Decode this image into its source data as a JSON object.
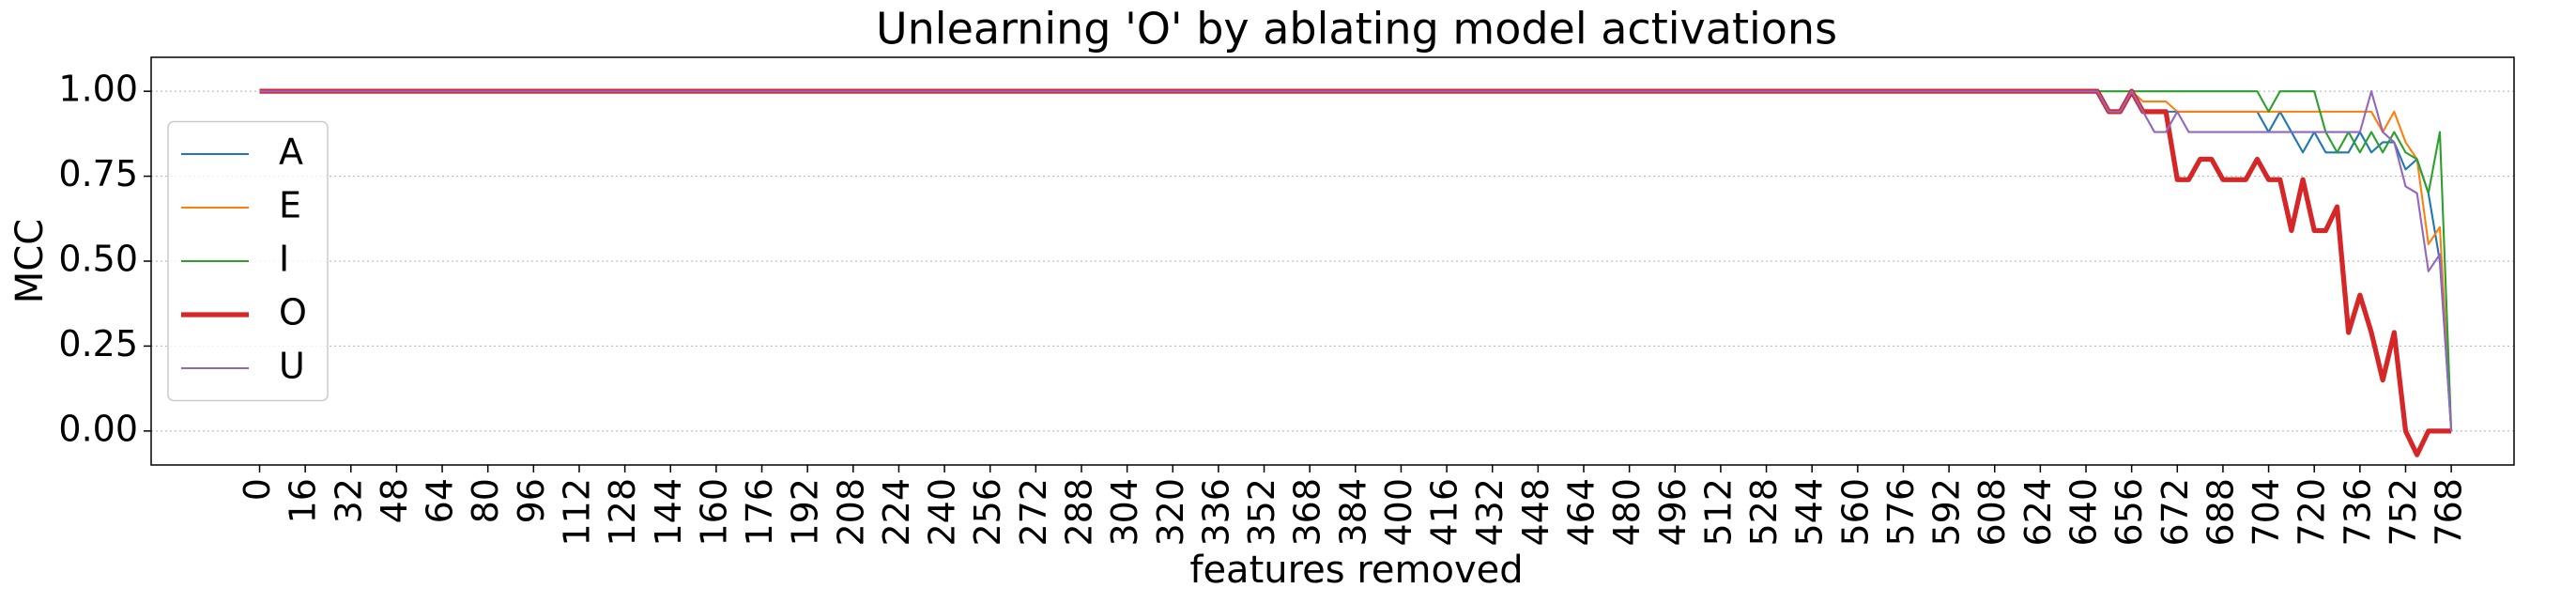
{
  "chart_data": {
    "type": "line",
    "title": "Unlearning 'O' by ablating model activations",
    "xlabel": "features removed",
    "ylabel": "MCC",
    "x": [
      0,
      644,
      648,
      652,
      656,
      660,
      664,
      668,
      672,
      676,
      680,
      684,
      688,
      692,
      696,
      700,
      704,
      708,
      712,
      716,
      720,
      724,
      728,
      732,
      736,
      740,
      744,
      748,
      752,
      756,
      760,
      764,
      768
    ],
    "series": [
      {
        "name": "A",
        "color": "#1f77b4",
        "linewidth": 1.2,
        "values": [
          1,
          1,
          0.94,
          0.94,
          1.0,
          0.94,
          0.94,
          0.94,
          0.94,
          0.94,
          0.94,
          0.94,
          0.94,
          0.94,
          0.94,
          0.94,
          0.88,
          0.94,
          0.88,
          0.82,
          0.88,
          0.82,
          0.82,
          0.82,
          0.88,
          0.82,
          0.85,
          0.85,
          0.77,
          0.8,
          0.7,
          0.5,
          0
        ]
      },
      {
        "name": "E",
        "color": "#ff7f0e",
        "linewidth": 1.2,
        "values": [
          1,
          1,
          0.94,
          0.94,
          1.0,
          0.97,
          0.97,
          0.97,
          0.94,
          0.94,
          0.94,
          0.94,
          0.94,
          0.94,
          0.94,
          0.94,
          0.94,
          0.94,
          0.94,
          0.94,
          0.94,
          0.94,
          0.94,
          0.94,
          0.94,
          0.94,
          0.88,
          0.94,
          0.85,
          0.8,
          0.55,
          0.6,
          0
        ]
      },
      {
        "name": "I",
        "color": "#2ca02c",
        "linewidth": 1.2,
        "values": [
          1,
          1,
          1.0,
          1.0,
          1.0,
          1.0,
          1.0,
          1.0,
          1.0,
          1.0,
          1.0,
          1.0,
          1.0,
          1.0,
          1.0,
          1.0,
          0.94,
          1.0,
          1.0,
          1.0,
          1.0,
          0.88,
          0.82,
          0.88,
          0.82,
          0.88,
          0.82,
          0.88,
          0.82,
          0.8,
          0.7,
          0.88,
          0
        ]
      },
      {
        "name": "O",
        "color": "#d62728",
        "linewidth": 3,
        "values": [
          1,
          1,
          0.94,
          0.94,
          1.0,
          0.94,
          0.94,
          0.94,
          0.74,
          0.74,
          0.8,
          0.8,
          0.74,
          0.74,
          0.74,
          0.8,
          0.74,
          0.74,
          0.59,
          0.74,
          0.59,
          0.59,
          0.66,
          0.29,
          0.4,
          0.29,
          0.15,
          0.29,
          0,
          -0.07,
          0,
          0,
          0
        ]
      },
      {
        "name": "U",
        "color": "#9467bd",
        "linewidth": 1.2,
        "values": [
          1,
          1,
          0.94,
          0.94,
          1.0,
          0.94,
          0.88,
          0.88,
          0.94,
          0.88,
          0.88,
          0.88,
          0.88,
          0.88,
          0.88,
          0.88,
          0.88,
          0.88,
          0.88,
          0.88,
          0.88,
          0.88,
          0.88,
          0.88,
          0.88,
          1.0,
          0.88,
          0.85,
          0.72,
          0.7,
          0.47,
          0.52,
          0
        ]
      }
    ],
    "xlim": [
      -38,
      790
    ],
    "ylim": [
      -0.1,
      1.1
    ],
    "xticks": [
      0,
      16,
      32,
      48,
      64,
      80,
      96,
      112,
      128,
      144,
      160,
      176,
      192,
      208,
      224,
      240,
      256,
      272,
      288,
      304,
      320,
      336,
      352,
      368,
      384,
      400,
      416,
      432,
      448,
      464,
      480,
      496,
      512,
      528,
      544,
      560,
      576,
      592,
      608,
      624,
      640,
      656,
      672,
      688,
      704,
      720,
      736,
      752,
      768
    ],
    "yticks": [
      {
        "value": 0,
        "label": "0.00"
      },
      {
        "value": 0.25,
        "label": "0.25"
      },
      {
        "value": 0.5,
        "label": "0.50"
      },
      {
        "value": 0.75,
        "label": "0.75"
      },
      {
        "value": 1,
        "label": "1.00"
      }
    ],
    "grid": true,
    "legend": "center left"
  }
}
